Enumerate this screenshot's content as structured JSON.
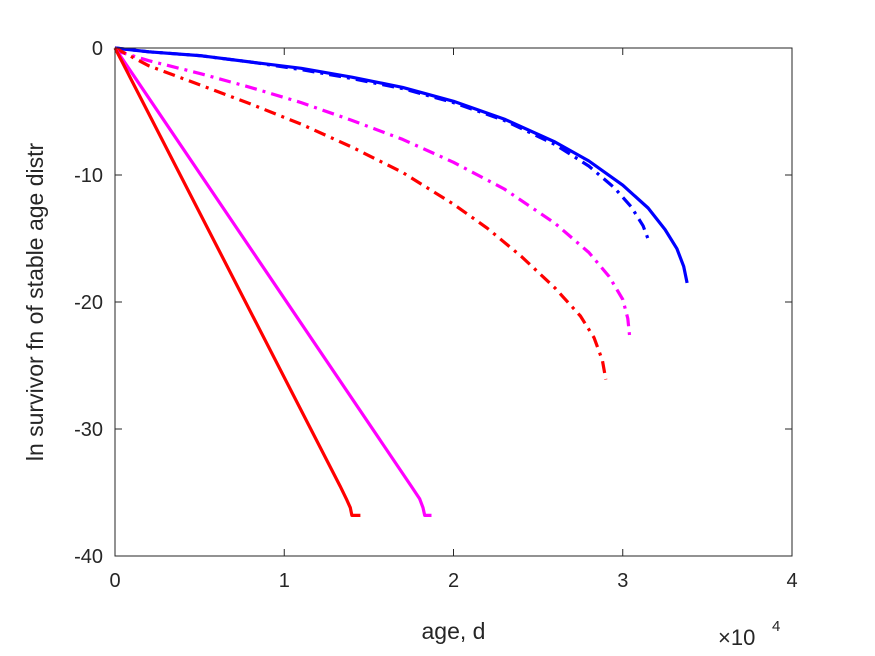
{
  "chart_data": {
    "type": "line",
    "title": "",
    "xlabel": "age, d",
    "ylabel": "ln survivor fn of stable age distr",
    "x_multiplier": {
      "base": "×10",
      "exponent": "4"
    },
    "xlim": [
      0,
      40000
    ],
    "ylim": [
      -40,
      0
    ],
    "xticks": [
      0,
      10000,
      20000,
      30000,
      40000
    ],
    "xtick_labels": [
      "0",
      "1",
      "2",
      "3",
      "4"
    ],
    "yticks": [
      0,
      -10,
      -20,
      -30,
      -40
    ],
    "ytick_labels": [
      "0",
      "-10",
      "-20",
      "-30",
      "-40"
    ],
    "grid": false,
    "series": [
      {
        "color": "#0000ff",
        "style": "solid",
        "x": [
          0,
          2000,
          5000,
          8000,
          11000,
          14000,
          17000,
          20000,
          23000,
          26000,
          28000,
          30000,
          31500,
          32500,
          33200,
          33600,
          33800
        ],
        "y": [
          0,
          -0.3,
          -0.6,
          -1.1,
          -1.6,
          -2.3,
          -3.1,
          -4.2,
          -5.6,
          -7.4,
          -8.9,
          -10.8,
          -12.6,
          -14.3,
          -15.8,
          -17.2,
          -18.5
        ]
      },
      {
        "color": "#0000ff",
        "style": "dashdot",
        "x": [
          0,
          2000,
          5000,
          8000,
          11000,
          14000,
          17000,
          20000,
          23000,
          26000,
          28000,
          29500,
          30500,
          31200,
          31600
        ],
        "y": [
          0,
          -0.3,
          -0.6,
          -1.1,
          -1.7,
          -2.4,
          -3.2,
          -4.3,
          -5.7,
          -7.6,
          -9.3,
          -11.0,
          -12.5,
          -14.0,
          -15.4
        ]
      },
      {
        "color": "#ff00ff",
        "style": "dashdot",
        "x": [
          0,
          2000,
          5000,
          8000,
          11000,
          14000,
          17000,
          20000,
          23000,
          26000,
          28000,
          29200,
          30000,
          30300,
          30400
        ],
        "y": [
          -0.2,
          -1.0,
          -2.0,
          -3.1,
          -4.3,
          -5.7,
          -7.2,
          -9.0,
          -11.1,
          -13.8,
          -16.1,
          -18.0,
          -19.8,
          -21.3,
          -22.6
        ]
      },
      {
        "color": "#ff0000",
        "style": "dashdot",
        "x": [
          0,
          2000,
          5000,
          8000,
          11000,
          14000,
          17000,
          20000,
          22000,
          24000,
          26000,
          27500,
          28300,
          28800,
          29000
        ],
        "y": [
          0,
          -1.4,
          -2.9,
          -4.4,
          -6.0,
          -7.8,
          -9.8,
          -12.3,
          -14.2,
          -16.4,
          -18.9,
          -21.1,
          -22.8,
          -24.6,
          -26.1
        ]
      },
      {
        "color": "#ff00ff",
        "style": "solid",
        "x": [
          0,
          17500,
          18000,
          18200,
          18300,
          18700
        ],
        "y": [
          0,
          -34.5,
          -35.5,
          -36.2,
          -36.8,
          -36.8
        ]
      },
      {
        "color": "#ff0000",
        "style": "solid",
        "x": [
          0,
          13300,
          13700,
          13900,
          14000,
          14500
        ],
        "y": [
          0,
          -34.5,
          -35.6,
          -36.2,
          -36.8,
          -36.8
        ]
      }
    ]
  }
}
